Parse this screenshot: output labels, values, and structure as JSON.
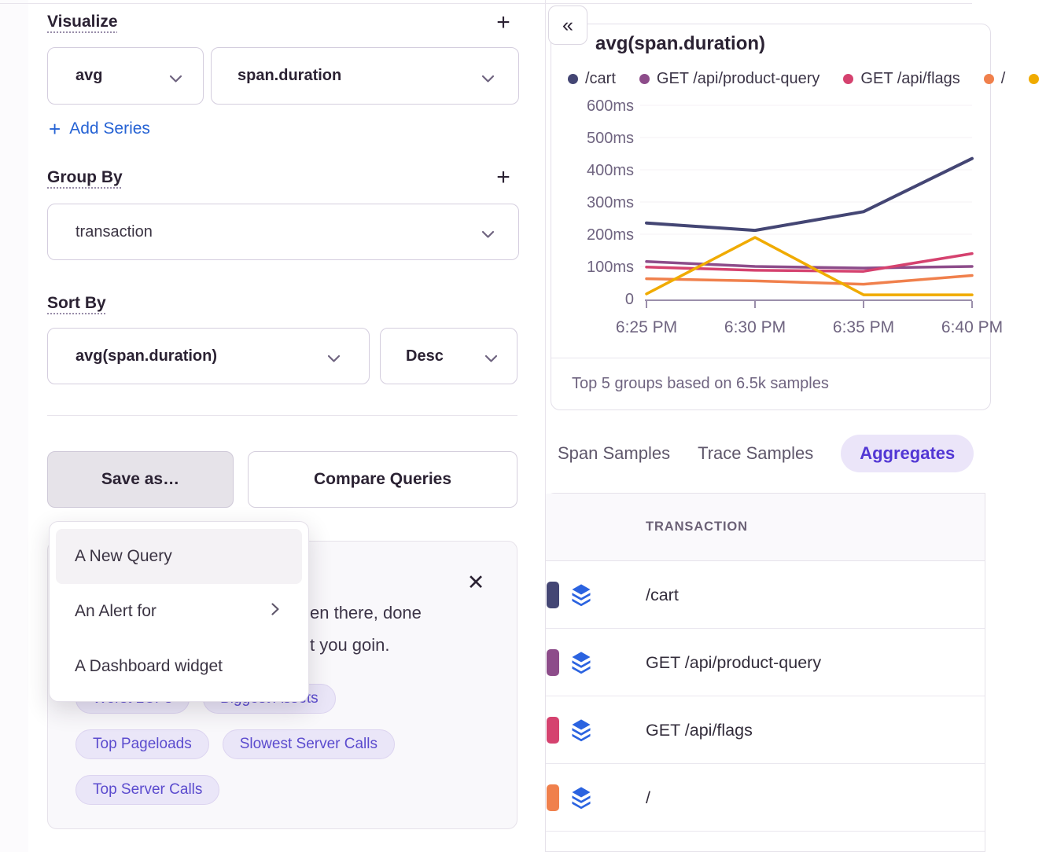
{
  "icons": {
    "add": "+",
    "collapse": "«",
    "close": "✕"
  },
  "left_panel": {
    "visualize": {
      "heading": "Visualize",
      "aggregate": "avg",
      "field": "span.duration",
      "add_series": "Add Series"
    },
    "group_by": {
      "heading": "Group By",
      "value": "transaction"
    },
    "sort_by": {
      "heading": "Sort By",
      "field": "avg(span.duration)",
      "direction": "Desc"
    },
    "buttons": {
      "save_as": "Save as…",
      "compare": "Compare Queries"
    },
    "save_menu": [
      {
        "label": "A New Query",
        "highlighted": true,
        "submenu": false
      },
      {
        "label": "An Alert for",
        "highlighted": false,
        "submenu": true
      },
      {
        "label": "A Dashboard widget",
        "highlighted": false,
        "submenu": false
      }
    ],
    "suggested_queries": {
      "visible_text_line1": "en there, done",
      "visible_text_line2": "t you goin.",
      "chip_rows": [
        [
          "Worst LCPs",
          "Biggest Assets"
        ],
        [
          "Top Pageloads",
          "Slowest Server Calls"
        ],
        [
          "Top Server Calls"
        ]
      ]
    }
  },
  "right_panel": {
    "tabs": [
      {
        "label": "Span Samples",
        "active": false
      },
      {
        "label": "Trace Samples",
        "active": false
      },
      {
        "label": "Aggregates",
        "active": true
      }
    ],
    "table": {
      "header": "TRANSACTION",
      "rows": [
        {
          "color": "#444674",
          "label": "/cart"
        },
        {
          "color": "#8d4c8a",
          "label": "GET /api/product-query"
        },
        {
          "color": "#d5426f",
          "label": "GET /api/flags"
        },
        {
          "color": "#f0804c",
          "label": "/"
        }
      ]
    }
  },
  "chart_data": {
    "type": "line",
    "title": "avg(span.duration)",
    "x_labels": [
      "6:25 PM",
      "6:30 PM",
      "6:35 PM",
      "6:40 PM"
    ],
    "y_ticks": [
      "0",
      "100ms",
      "200ms",
      "300ms",
      "400ms",
      "500ms",
      "600ms"
    ],
    "ylim": [
      0,
      600
    ],
    "unit": "ms",
    "grid": true,
    "legend_position": "top",
    "series": [
      {
        "name": "/cart",
        "color": "#444674",
        "values": [
          235,
          212,
          270,
          435
        ]
      },
      {
        "name": "GET /api/product-query",
        "color": "#8d4c8a",
        "values": [
          115,
          100,
          95,
          100
        ]
      },
      {
        "name": "GET /api/flags",
        "color": "#d5426f",
        "values": [
          98,
          88,
          85,
          140
        ]
      },
      {
        "name": "/",
        "color": "#f0804c",
        "values": [
          62,
          55,
          45,
          72
        ]
      },
      {
        "name": "",
        "color": "#f0ab00",
        "values": [
          15,
          190,
          12,
          12
        ]
      }
    ],
    "footer": "Top 5 groups based on 6.5k samples"
  }
}
